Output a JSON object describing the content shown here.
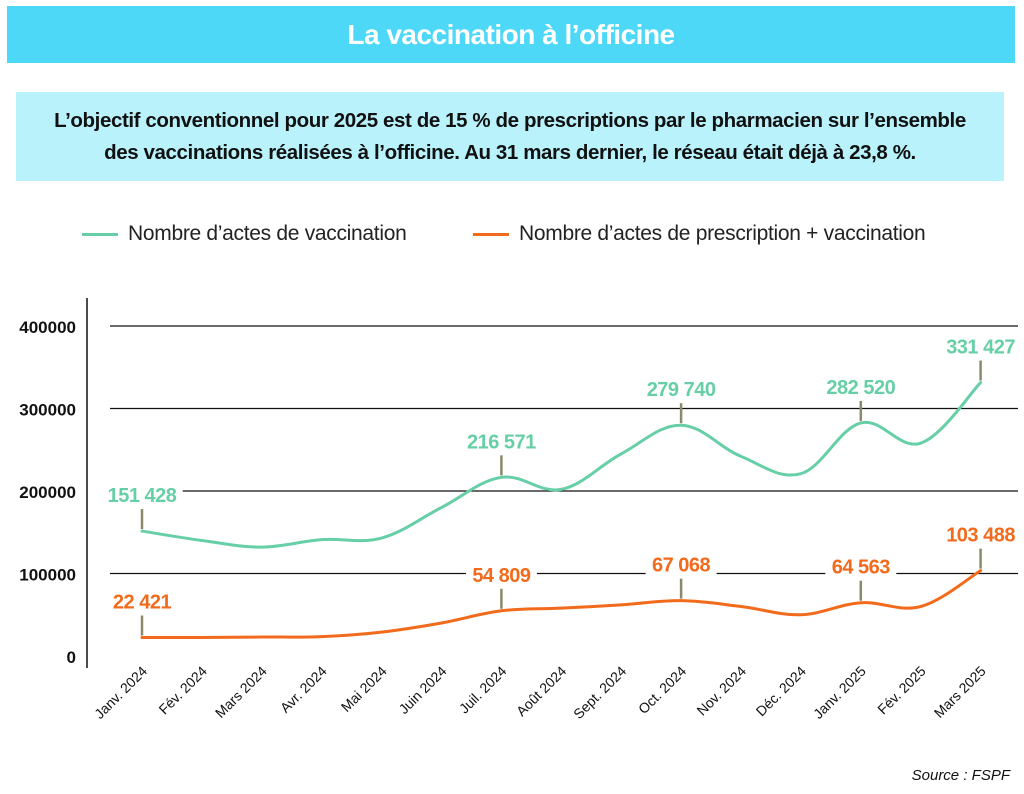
{
  "header": {
    "title": "La vaccination à l’officine"
  },
  "subtitle": {
    "line1": "L’objectif conventionnel pour 2025 est de 15 % de prescriptions par le pharmacien sur l’ensemble",
    "line2": "des vaccinations réalisées à l’officine. Au 31 mars dernier, le réseau était déjà à 23,8 %."
  },
  "source": "Source : FSPF",
  "colors": {
    "title_bg": "#4dd8f7",
    "subtitle_bg": "#b9f2fb",
    "series_green": "#66cfa6",
    "series_orange": "#f26a1b",
    "leader": "#8a8a6a"
  },
  "chart_data": {
    "type": "line",
    "categories": [
      "Janv. 2024",
      "Fév. 2024",
      "Mars 2024",
      "Avr. 2024",
      "Mai 2024",
      "Juin 2024",
      "Juil. 2024",
      "Août 2024",
      "Sept. 2024",
      "Oct. 2024",
      "Nov. 2024",
      "Déc. 2024",
      "Janv. 2025",
      "Fév. 2025",
      "Mars 2025"
    ],
    "ylim": [
      0,
      400000
    ],
    "yticks": [
      0,
      100000,
      200000,
      300000,
      400000
    ],
    "ytick_labels": [
      "0",
      "100000",
      "200000",
      "300000",
      "400000"
    ],
    "grid": true,
    "legend_position": "top",
    "series": [
      {
        "name": "Nombre d’actes de vaccination",
        "color": "#66cfa6",
        "values": [
          151428,
          140000,
          132000,
          141000,
          143000,
          180000,
          216571,
          202000,
          245000,
          279740,
          242000,
          221000,
          282520,
          258000,
          331427
        ],
        "labels": [
          {
            "index": 0,
            "text": "151 428"
          },
          {
            "index": 6,
            "text": "216 571"
          },
          {
            "index": 9,
            "text": "279 740"
          },
          {
            "index": 12,
            "text": "282 520"
          },
          {
            "index": 14,
            "text": "331 427"
          }
        ]
      },
      {
        "name": "Nombre d’actes de prescription + vaccination",
        "color": "#f26a1b",
        "values": [
          22421,
          22500,
          23000,
          23500,
          29000,
          40000,
          54809,
          58000,
          62000,
          67068,
          60000,
          50000,
          64563,
          60000,
          103488
        ],
        "labels": [
          {
            "index": 0,
            "text": "22 421"
          },
          {
            "index": 6,
            "text": "54 809"
          },
          {
            "index": 9,
            "text": "67 068"
          },
          {
            "index": 12,
            "text": "64 563"
          },
          {
            "index": 14,
            "text": "103 488"
          }
        ]
      }
    ]
  }
}
